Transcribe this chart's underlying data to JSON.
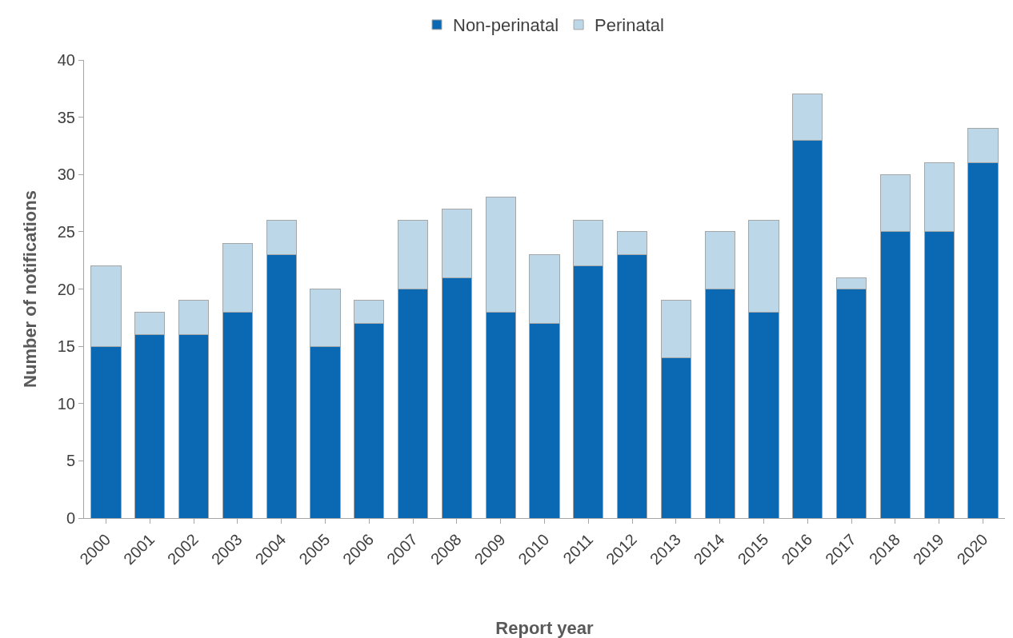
{
  "chart_data": {
    "type": "bar",
    "stacked": true,
    "xlabel": "Report year",
    "ylabel": "Number of notifications",
    "categories": [
      "2000",
      "2001",
      "2002",
      "2003",
      "2004",
      "2005",
      "2006",
      "2007",
      "2008",
      "2009",
      "2010",
      "2011",
      "2012",
      "2013",
      "2014",
      "2015",
      "2016",
      "2017",
      "2018",
      "2019",
      "2020"
    ],
    "series": [
      {
        "name": "Non-perinatal",
        "color": "#0b69b3",
        "values": [
          15,
          16,
          16,
          18,
          23,
          15,
          17,
          20,
          21,
          18,
          17,
          22,
          23,
          14,
          20,
          18,
          33,
          20,
          25,
          25,
          31
        ]
      },
      {
        "name": "Perinatal",
        "color": "#bcd7e8",
        "values": [
          7,
          2,
          3,
          6,
          3,
          5,
          2,
          6,
          6,
          10,
          6,
          4,
          2,
          5,
          5,
          8,
          4,
          1,
          5,
          6,
          3
        ]
      }
    ],
    "ylim": [
      0,
      40
    ],
    "yticks": [
      0,
      5,
      10,
      15,
      20,
      25,
      30,
      35,
      40
    ],
    "grid": false,
    "legend": "top"
  }
}
